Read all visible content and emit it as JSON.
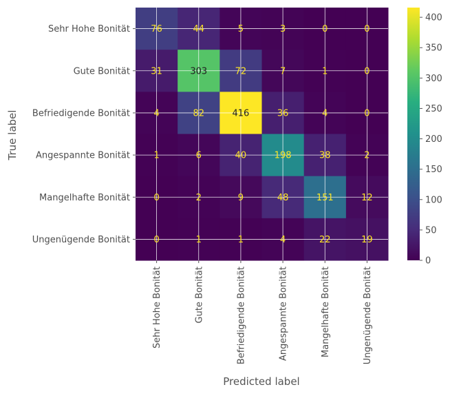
{
  "chart_data": {
    "type": "heatmap",
    "title": "",
    "xlabel": "Predicted label",
    "ylabel": "True label",
    "categories": [
      "Sehr Hohe Bonität",
      "Gute Bonität",
      "Befriedigende Bonität",
      "Angespannte Bonität",
      "Mangelhafte Bonität",
      "Ungenügende Bonität"
    ],
    "matrix": [
      [
        76,
        44,
        5,
        3,
        0,
        0
      ],
      [
        31,
        303,
        72,
        7,
        1,
        0
      ],
      [
        4,
        82,
        416,
        36,
        4,
        0
      ],
      [
        1,
        6,
        40,
        198,
        38,
        2
      ],
      [
        0,
        2,
        9,
        48,
        151,
        12
      ],
      [
        0,
        1,
        1,
        4,
        22,
        19
      ]
    ],
    "color_scale": {
      "colormap": "viridis",
      "vmin": 0,
      "vmax": 416,
      "ticks": [
        0,
        50,
        100,
        150,
        200,
        250,
        300,
        350,
        400
      ],
      "low_text_color": "#fde725",
      "high_text_color": "#1f1f1f"
    },
    "grid": true
  }
}
